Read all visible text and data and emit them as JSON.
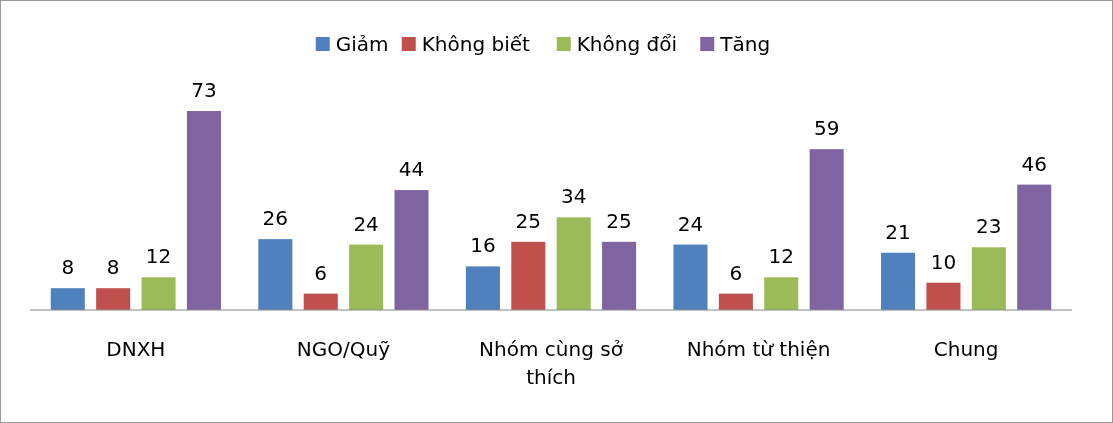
{
  "chart_data": {
    "type": "bar",
    "categories": [
      "DNXH",
      "NGO/Quỹ",
      "Nhóm cùng sở thích",
      "Nhóm từ thiện",
      "Chung"
    ],
    "series": [
      {
        "name": "Giảm",
        "color": "#4f81bd",
        "values": [
          8,
          26,
          16,
          24,
          21
        ]
      },
      {
        "name": "Không biết",
        "color": "#c0504d",
        "values": [
          8,
          6,
          25,
          6,
          10
        ]
      },
      {
        "name": "Không đổi",
        "color": "#9bbb59",
        "values": [
          12,
          24,
          34,
          12,
          23
        ]
      },
      {
        "name": "Tăng",
        "color": "#8064a2",
        "values": [
          73,
          44,
          25,
          59,
          46
        ]
      }
    ],
    "data_labels": true,
    "legend": "top"
  }
}
